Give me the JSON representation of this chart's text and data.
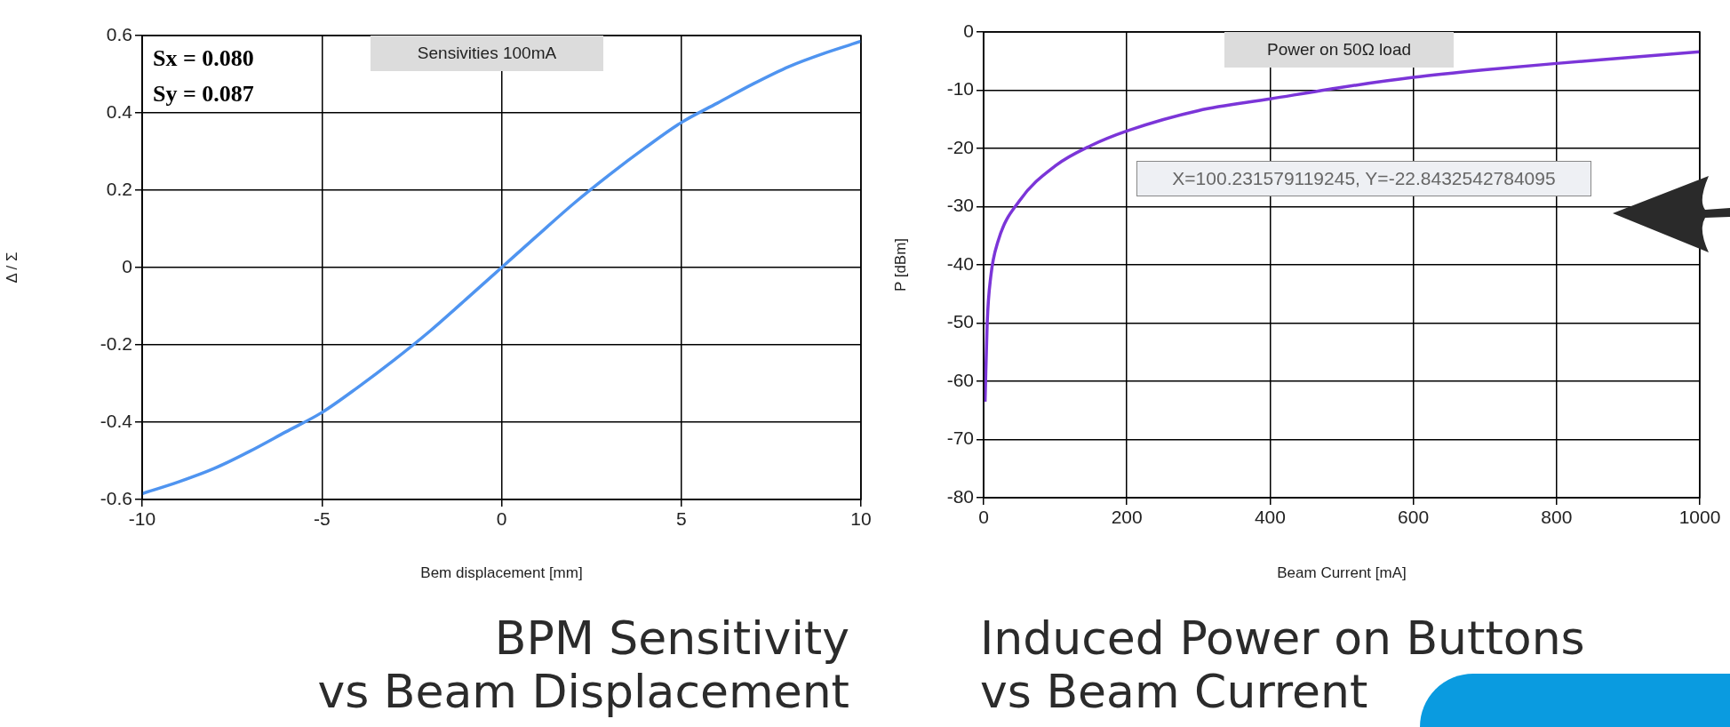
{
  "chart_data": [
    {
      "type": "line",
      "title": "BPM Sensitivity\nvs Beam Displacement",
      "xlabel": "Bem displacement [mm]",
      "ylabel": "Δ / Σ",
      "x": [
        -10,
        -9,
        -8,
        -7,
        -6,
        -5,
        -4,
        -3,
        -2,
        -1,
        0,
        1,
        2,
        3,
        4,
        5,
        6,
        7,
        8,
        9,
        10
      ],
      "values": [
        -0.585,
        -0.555,
        -0.52,
        -0.475,
        -0.425,
        -0.375,
        -0.31,
        -0.24,
        -0.165,
        -0.083,
        0,
        0.083,
        0.165,
        0.24,
        0.31,
        0.375,
        0.425,
        0.475,
        0.52,
        0.555,
        0.585
      ],
      "color": "#4f94f0",
      "xlim": [
        -10,
        10
      ],
      "ylim": [
        -0.6,
        0.6
      ],
      "xticks": [
        -10,
        -5,
        0,
        5,
        10
      ],
      "yticks": [
        -0.6,
        -0.4,
        -0.2,
        0,
        0.2,
        0.4,
        0.6
      ],
      "grid": true,
      "annotations": [
        "Sx = 0.080",
        "Sy = 0.087",
        "Sensivities 100mA"
      ]
    },
    {
      "type": "line",
      "title": "Induced Power on Buttons\nvs Beam Current",
      "xlabel": "Beam Current [mA]",
      "ylabel": "P [dBm]",
      "x": [
        2,
        5,
        10,
        20,
        50,
        100,
        150,
        200,
        300,
        400,
        500,
        600,
        700,
        800,
        900,
        1000
      ],
      "values": [
        -63.5,
        -50,
        -42,
        -36,
        -29,
        -23,
        -19.5,
        -17,
        -13.5,
        -11.5,
        -9.5,
        -7.8,
        -6.5,
        -5.4,
        -4.4,
        -3.4
      ],
      "color": "#7b35d8",
      "xlim": [
        0,
        1000
      ],
      "ylim": [
        -80,
        0
      ],
      "xticks": [
        0,
        200,
        400,
        600,
        800,
        1000
      ],
      "yticks": [
        -80,
        -70,
        -60,
        -50,
        -40,
        -30,
        -20,
        -10,
        0
      ],
      "grid": true,
      "annotations": [
        "Power on 50Ω load",
        "X=100.231579119245, Y=-22.8432542784095"
      ]
    }
  ]
}
